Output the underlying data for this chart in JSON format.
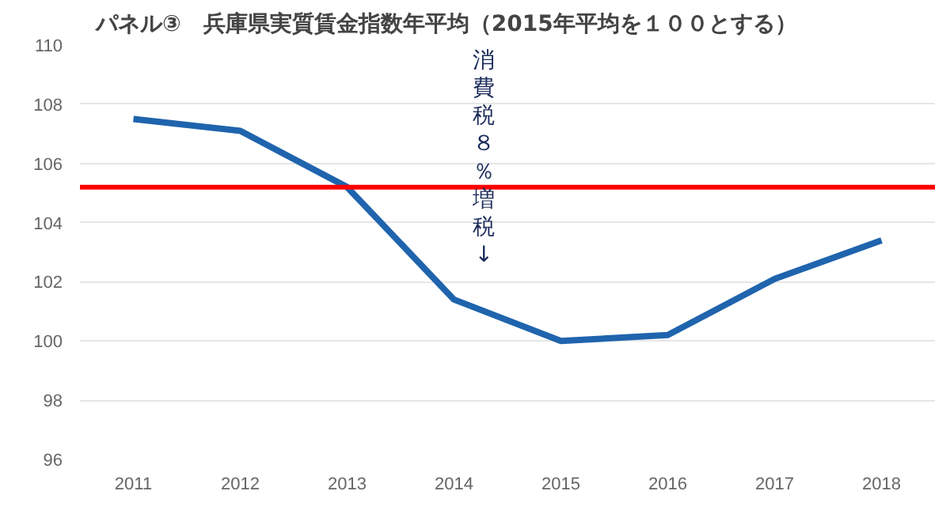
{
  "chart_data": {
    "type": "line",
    "title": "パネル③　兵庫県実質賃金指数年平均（2015年平均を１００とする）",
    "categories": [
      "2011",
      "2012",
      "2013",
      "2014",
      "2015",
      "2016",
      "2017",
      "2018"
    ],
    "series": [
      {
        "color": "#1f64ad",
        "values": [
          107.5,
          107.1,
          105.2,
          101.4,
          100.0,
          100.2,
          102.1,
          103.4
        ]
      }
    ],
    "ylim": [
      96,
      110
    ],
    "yticks": [
      96,
      98,
      100,
      102,
      104,
      106,
      108,
      110
    ],
    "grid": "y",
    "ref_lines": [
      {
        "axis": "y",
        "value": 105.2,
        "color": "#ff0000"
      }
    ],
    "annotations": [
      "消費税８％増税↓"
    ]
  }
}
